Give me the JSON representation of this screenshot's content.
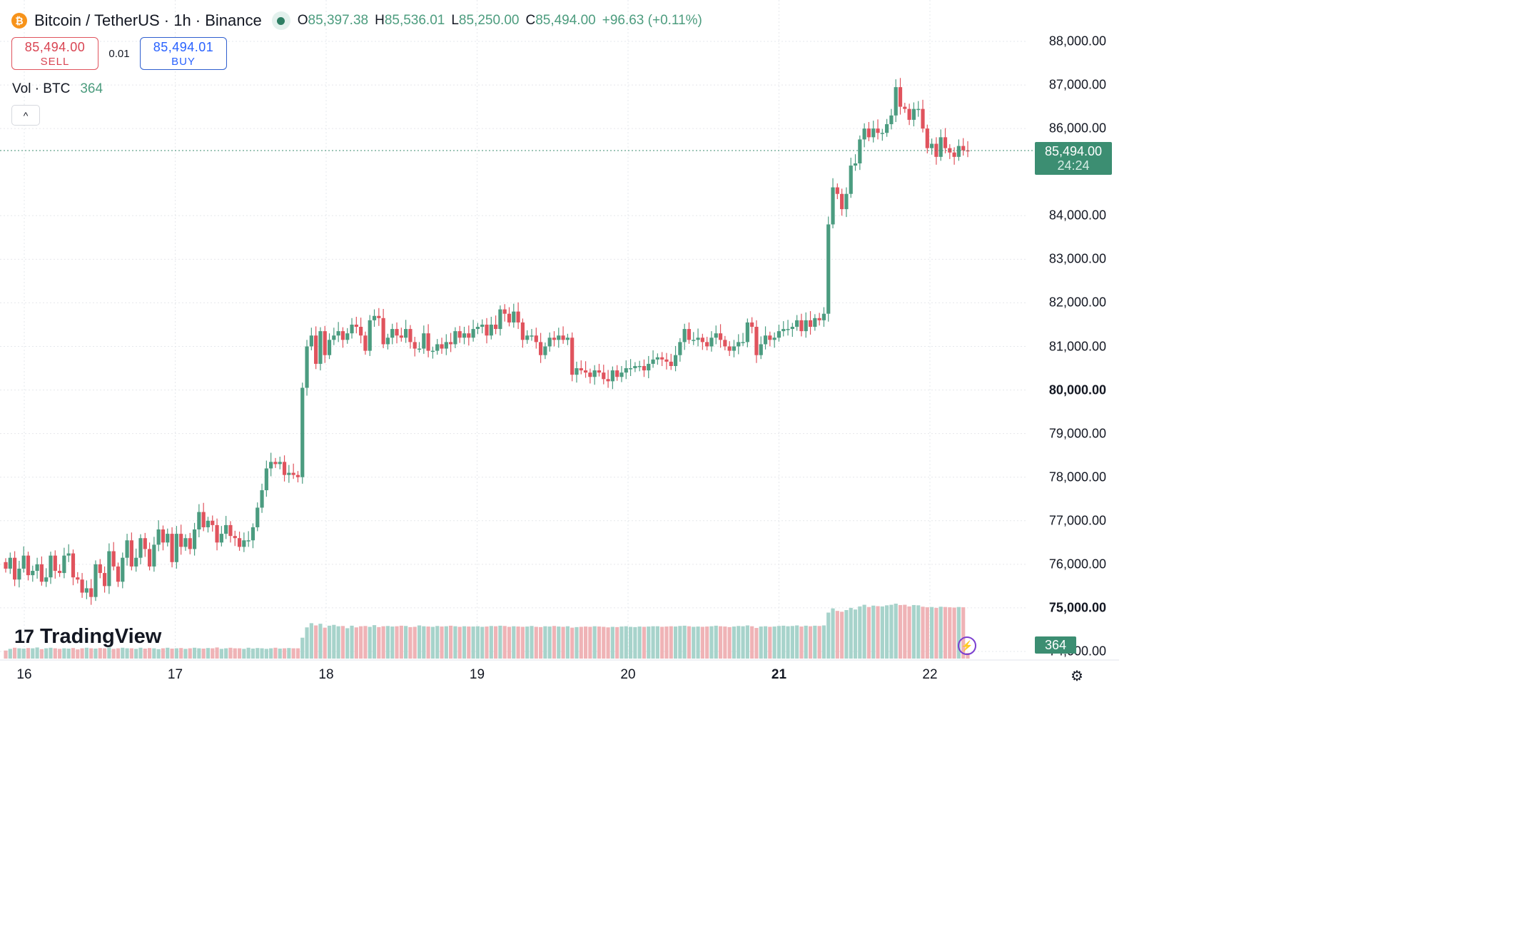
{
  "header": {
    "coin_icon_glyph": "₿",
    "symbol_title": "Bitcoin / TetherUS · 1h · Binance",
    "open_key": "O",
    "open_val": "85,397.38",
    "high_key": "H",
    "high_val": "85,536.01",
    "low_key": "L",
    "low_val": "85,250.00",
    "close_key": "C",
    "close_val": "85,494.00",
    "change": "+96.63 (+0.11%)"
  },
  "trade": {
    "sell_price": "85,494.00",
    "sell_label": "SELL",
    "spread": "0.01",
    "buy_price": "85,494.01",
    "buy_label": "BUY"
  },
  "volume_legend": {
    "label": "Vol · BTC",
    "value": "364"
  },
  "collapse_glyph": "^",
  "price_tag": {
    "price": "85,494.00",
    "countdown": "24:24"
  },
  "volume_tag": "364",
  "logo": {
    "mark": "17",
    "word": "TradingView"
  },
  "colors": {
    "up": "#4b9c80",
    "down": "#e0535d",
    "vol_up": "#a7d3cb",
    "vol_down": "#efb3b6",
    "last_price": "#3c8e72"
  },
  "chart_data": {
    "type": "candlestick",
    "title": "Bitcoin / TetherUS · 1h · Binance",
    "interval": "1h",
    "y_ticks": [
      "88,000.00",
      "87,000.00",
      "86,000.00",
      "84,000.00",
      "83,000.00",
      "82,000.00",
      "81,000.00",
      "80,000.00",
      "79,000.00",
      "78,000.00",
      "77,000.00",
      "76,000.00",
      "75,000.00",
      "74,000.00"
    ],
    "bold_y_ticks": [
      "80,000.00",
      "75,000.00"
    ],
    "x_ticks": [
      "16",
      "17",
      "18",
      "19",
      "20",
      "21",
      "22"
    ],
    "bold_x_ticks": [
      "21"
    ],
    "ylim": [
      74000,
      88000
    ],
    "last_price": 85494.0,
    "grid": true,
    "series": [
      {
        "name": "",
        "values": [
          75900,
          76150,
          75650,
          75900,
          76200,
          75750,
          75850,
          76000,
          75600,
          75700,
          76200,
          75850,
          75800,
          76200,
          76250,
          75700,
          75650,
          75350,
          75450,
          75250,
          76000,
          75800,
          75500,
          76300,
          75950,
          75600,
          76150,
          76550,
          75950,
          76150,
          76600,
          76350,
          75950,
          76450,
          76800,
          76500,
          76700,
          76050,
          76700,
          76400,
          76600,
          76350,
          76800,
          77200,
          76850,
          77000,
          76900,
          76500,
          76700,
          76900,
          76650,
          76600,
          76400,
          76550,
          76550,
          76850,
          77300,
          77700,
          78200,
          78350,
          78300,
          78350,
          78050,
          78100,
          78050,
          78000,
          80050,
          81000,
          81250,
          80600,
          81350,
          80800,
          81150,
          81250,
          81350,
          81150,
          81300,
          81500,
          81450,
          81250,
          80900,
          81600,
          81700,
          81650,
          81050,
          81200,
          81400,
          81250,
          81200,
          81400,
          81100,
          80950,
          80950,
          81300,
          80900,
          80900,
          81050,
          80950,
          81100,
          81050,
          81350,
          81200,
          81300,
          81200,
          81400,
          81450,
          81500,
          81250,
          81500,
          81400,
          81850,
          81750,
          81550,
          81800,
          81550,
          81150,
          81250,
          81250,
          81100,
          80800,
          81000,
          81200,
          81150,
          81250,
          81150,
          81200,
          80350,
          80500,
          80450,
          80400,
          80300,
          80450,
          80400,
          80250,
          80200,
          80450,
          80300,
          80400,
          80500,
          80500,
          80550,
          80550,
          80450,
          80600,
          80700,
          80750,
          80700,
          80650,
          80550,
          80800,
          81100,
          81400,
          81150,
          81150,
          81200,
          81100,
          81000,
          81200,
          81300,
          81150,
          81000,
          80900,
          81000,
          81100,
          81100,
          81550,
          81450,
          80800,
          81050,
          81250,
          81150,
          81200,
          81350,
          81400,
          81400,
          81450,
          81600,
          81350,
          81600,
          81450,
          81650,
          81600,
          81750,
          83800,
          84650,
          84500,
          84150,
          84500,
          85150,
          85200,
          85750,
          86000,
          85800,
          86000,
          85900,
          85900,
          86100,
          86300,
          86950,
          86500,
          86450,
          86200,
          86450,
          86450,
          86000,
          85550,
          85650,
          85350,
          85800,
          85550,
          85450,
          85350,
          85600,
          85500,
          85494
        ]
      },
      {
        "name": "Vol · BTC",
        "values": [
          4200,
          4800,
          5200,
          5000,
          4900,
          5100,
          5000,
          5300,
          4700,
          5000,
          5200,
          5000,
          4800,
          5000,
          4900,
          5100,
          4600,
          5000,
          5200,
          5000,
          4900,
          5100,
          5000,
          5300,
          4800,
          5000,
          5200,
          5000,
          5000,
          4800,
          5200,
          4900,
          5100,
          5000,
          4700,
          5000,
          5200,
          4900,
          5000,
          5100,
          4800,
          5000,
          5200,
          5000,
          4900,
          5100,
          5000,
          5300,
          4800,
          5000,
          5200,
          5000,
          5000,
          4800,
          5200,
          4900,
          5100,
          5000,
          4800,
          5000,
          5200,
          4900,
          5000,
          5100,
          5000,
          5000,
          8800,
          12500,
          14000,
          13200,
          13800,
          12400,
          13100,
          13400,
          12900,
          13000,
          12200,
          13100,
          12500,
          12900,
          13000,
          12700,
          13300,
          12600,
          12900,
          13000,
          12800,
          12900,
          13100,
          13000,
          12600,
          12700,
          13200,
          12900,
          12800,
          12700,
          13000,
          12800,
          12900,
          13100,
          12900,
          12700,
          12900,
          12800,
          12800,
          12900,
          12700,
          12800,
          13000,
          12900,
          13100,
          13000,
          12700,
          12900,
          12800,
          12700,
          12800,
          13000,
          12700,
          12600,
          12900,
          12800,
          13000,
          12800,
          12700,
          12900,
          12400,
          12600,
          12700,
          12800,
          12700,
          12900,
          12800,
          12700,
          12500,
          12700,
          12600,
          12800,
          12900,
          12700,
          12600,
          12800,
          12700,
          12800,
          12900,
          12900,
          12700,
          12800,
          12900,
          12800,
          13000,
          13100,
          12900,
          12700,
          12800,
          12700,
          12800,
          12900,
          13100,
          12900,
          12800,
          12600,
          12800,
          13000,
          12900,
          13200,
          12900,
          12300,
          12800,
          12900,
          12700,
          12800,
          13000,
          13100,
          12900,
          13000,
          13200,
          12800,
          13100,
          12900,
          13100,
          13000,
          13200,
          17800,
          19300,
          18400,
          18100,
          18700,
          19500,
          18900,
          20000,
          20600,
          19800,
          20300,
          20100,
          20000,
          20400,
          20600,
          21000,
          20500,
          20600,
          20000,
          20500,
          20400,
          19900,
          19700,
          19800,
          19500,
          19900,
          19800,
          19700,
          19600,
          19800,
          19700,
          364
        ]
      }
    ]
  }
}
